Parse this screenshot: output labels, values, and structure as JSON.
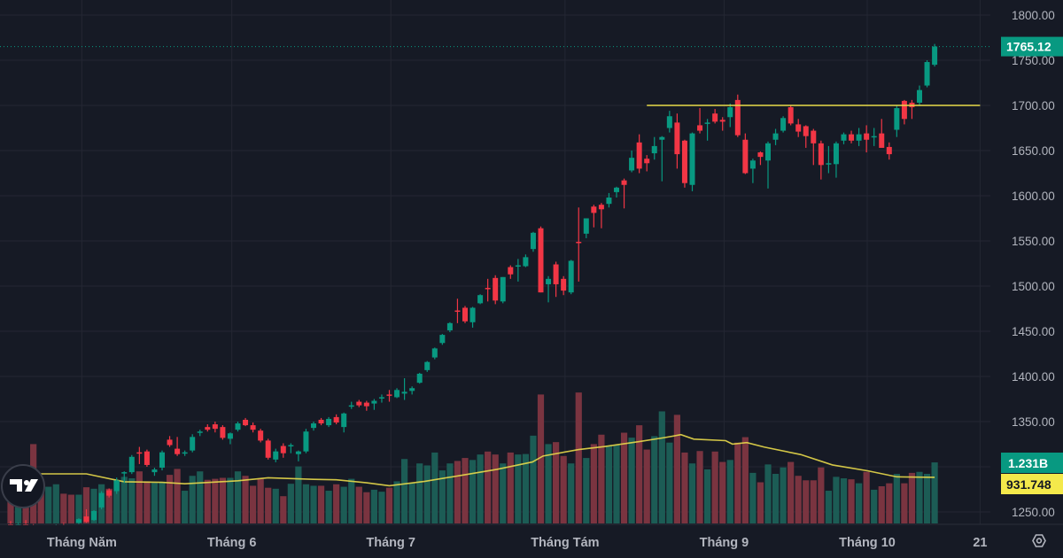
{
  "chart_data": {
    "type": "candlestick",
    "title": "",
    "ylim": [
      1240,
      1810
    ],
    "grid": true,
    "colors": {
      "up": "#089981",
      "down": "#f23645",
      "up_volume": "#1c5c55",
      "down_volume": "#7a3440",
      "volume_ma": "#e8d94a",
      "level_line": "#e8d94a",
      "background": "#161a25",
      "grid": "#242733",
      "axis_text": "#b2b5be"
    },
    "price_ticks": [
      "1800.00",
      "1750.00",
      "1700.00",
      "1650.00",
      "1600.00",
      "1550.00",
      "1500.00",
      "1450.00",
      "1400.00",
      "1350.00",
      "1250.00"
    ],
    "price_tick_values": [
      1800,
      1750,
      1700,
      1650,
      1600,
      1550,
      1500,
      1450,
      1400,
      1350,
      1250
    ],
    "time_ticks": [
      {
        "label": "Tháng Năm",
        "index": 9.4
      },
      {
        "label": "Tháng 6",
        "index": 29.2
      },
      {
        "label": "Tháng 7",
        "index": 50.2
      },
      {
        "label": "Tháng Tám",
        "index": 73.2
      },
      {
        "label": "Tháng 9",
        "index": 94.2
      },
      {
        "label": "Tháng 10",
        "index": 113.1
      },
      {
        "label": "21",
        "index": 128
      }
    ],
    "last_price": {
      "value": 1765.12,
      "label": "1765.12"
    },
    "volume_last": {
      "label": "1.231B",
      "value": 1.231
    },
    "volume_ma_last": {
      "label": "931.748",
      "value": 0.931748
    },
    "level_line": {
      "price": 1700,
      "from_index": 84,
      "to_index": 128
    },
    "volume_unit": "B",
    "ohlc": [
      [
        1236,
        1240,
        1228,
        1232
      ],
      [
        1232,
        1238,
        1226,
        1236
      ],
      [
        1236,
        1241,
        1230,
        1233
      ],
      [
        1233,
        1237,
        1225,
        1228
      ],
      [
        1228,
        1234,
        1222,
        1226
      ],
      [
        1226,
        1233,
        1222,
        1231
      ],
      [
        1231,
        1236,
        1226,
        1234
      ],
      [
        1234,
        1238,
        1228,
        1230
      ],
      [
        1230,
        1235,
        1226,
        1228
      ],
      [
        1238,
        1243,
        1236,
        1242
      ],
      [
        1245,
        1253,
        1238,
        1239
      ],
      [
        1241,
        1252,
        1240,
        1251
      ],
      [
        1255,
        1273,
        1253,
        1271
      ],
      [
        1274,
        1276,
        1266,
        1268
      ],
      [
        1273,
        1288,
        1270,
        1285
      ],
      [
        1293,
        1295,
        1282,
        1294
      ],
      [
        1294,
        1313,
        1292,
        1311
      ],
      [
        1316,
        1322,
        1303,
        1315
      ],
      [
        1317,
        1319,
        1300,
        1302
      ],
      [
        1294,
        1299,
        1290,
        1297
      ],
      [
        1299,
        1318,
        1296,
        1316
      ],
      [
        1330,
        1334,
        1322,
        1324
      ],
      [
        1320,
        1333,
        1312,
        1314
      ],
      [
        1315,
        1318,
        1312,
        1316
      ],
      [
        1318,
        1336,
        1316,
        1333
      ],
      [
        1338,
        1341,
        1334,
        1339
      ],
      [
        1344,
        1347,
        1339,
        1341
      ],
      [
        1347,
        1350,
        1338,
        1342
      ],
      [
        1344,
        1346,
        1330,
        1332
      ],
      [
        1331,
        1338,
        1325,
        1337
      ],
      [
        1341,
        1350,
        1339,
        1348
      ],
      [
        1352,
        1354,
        1345,
        1346
      ],
      [
        1346,
        1349,
        1338,
        1341
      ],
      [
        1340,
        1342,
        1327,
        1329
      ],
      [
        1329,
        1331,
        1308,
        1310
      ],
      [
        1308,
        1320,
        1305,
        1317
      ],
      [
        1323,
        1326,
        1310,
        1315
      ],
      [
        1323,
        1326,
        1315,
        1324
      ],
      [
        1314,
        1318,
        1306,
        1317
      ],
      [
        1317,
        1342,
        1315,
        1339
      ],
      [
        1343,
        1350,
        1340,
        1348
      ],
      [
        1352,
        1354,
        1346,
        1348
      ],
      [
        1346,
        1355,
        1344,
        1353
      ],
      [
        1355,
        1358,
        1347,
        1349
      ],
      [
        1344,
        1360,
        1338,
        1359
      ],
      [
        1367,
        1372,
        1364,
        1368
      ],
      [
        1372,
        1374,
        1366,
        1368
      ],
      [
        1371,
        1373,
        1362,
        1367
      ],
      [
        1370,
        1375,
        1363,
        1373
      ],
      [
        1376,
        1380,
        1371,
        1377
      ],
      [
        1380,
        1385,
        1372,
        1379
      ],
      [
        1377,
        1387,
        1376,
        1385
      ],
      [
        1381,
        1398,
        1374,
        1383
      ],
      [
        1384,
        1389,
        1380,
        1387
      ],
      [
        1393,
        1404,
        1392,
        1403
      ],
      [
        1407,
        1417,
        1405,
        1416
      ],
      [
        1421,
        1432,
        1419,
        1431
      ],
      [
        1437,
        1447,
        1435,
        1446
      ],
      [
        1451,
        1460,
        1449,
        1459
      ],
      [
        1473,
        1486,
        1459,
        1472
      ],
      [
        1476,
        1478,
        1459,
        1461
      ],
      [
        1460,
        1477,
        1454,
        1476
      ],
      [
        1481,
        1491,
        1480,
        1490
      ],
      [
        1498,
        1508,
        1483,
        1497
      ],
      [
        1509,
        1512,
        1480,
        1484
      ],
      [
        1483,
        1510,
        1481,
        1510
      ],
      [
        1521,
        1523,
        1508,
        1513
      ],
      [
        1522,
        1530,
        1505,
        1523
      ],
      [
        1522,
        1535,
        1521,
        1532
      ],
      [
        1541,
        1560,
        1538,
        1559
      ],
      [
        1564,
        1566,
        1493,
        1493
      ],
      [
        1502,
        1511,
        1482,
        1508
      ],
      [
        1524,
        1527,
        1488,
        1502
      ],
      [
        1508,
        1511,
        1490,
        1495
      ],
      [
        1493,
        1529,
        1491,
        1528
      ],
      [
        1549,
        1587,
        1505,
        1548
      ],
      [
        1558,
        1575,
        1553,
        1575
      ],
      [
        1588,
        1590,
        1565,
        1581
      ],
      [
        1590,
        1592,
        1564,
        1585
      ],
      [
        1591,
        1603,
        1587,
        1598
      ],
      [
        1604,
        1610,
        1598,
        1609
      ],
      [
        1617,
        1619,
        1586,
        1612
      ],
      [
        1628,
        1650,
        1626,
        1642
      ],
      [
        1659,
        1668,
        1625,
        1630
      ],
      [
        1641,
        1645,
        1627,
        1636
      ],
      [
        1647,
        1665,
        1640,
        1655
      ],
      [
        1662,
        1666,
        1616,
        1665
      ],
      [
        1675,
        1694,
        1670,
        1688
      ],
      [
        1681,
        1691,
        1630,
        1646
      ],
      [
        1661,
        1662,
        1609,
        1614
      ],
      [
        1612,
        1670,
        1605,
        1669
      ],
      [
        1678,
        1697,
        1669,
        1672
      ],
      [
        1680,
        1685,
        1661,
        1681
      ],
      [
        1691,
        1696,
        1680,
        1682
      ],
      [
        1684,
        1687,
        1672,
        1682
      ],
      [
        1687,
        1702,
        1676,
        1698
      ],
      [
        1706,
        1712,
        1665,
        1667
      ],
      [
        1662,
        1669,
        1624,
        1625
      ],
      [
        1630,
        1641,
        1614,
        1639
      ],
      [
        1648,
        1649,
        1634,
        1643
      ],
      [
        1639,
        1660,
        1608,
        1658
      ],
      [
        1662,
        1674,
        1656,
        1669
      ],
      [
        1672,
        1688,
        1670,
        1686
      ],
      [
        1698,
        1700,
        1678,
        1680
      ],
      [
        1679,
        1685,
        1665,
        1671
      ],
      [
        1677,
        1678,
        1653,
        1666
      ],
      [
        1672,
        1674,
        1634,
        1658
      ],
      [
        1658,
        1661,
        1618,
        1634
      ],
      [
        1635,
        1655,
        1625,
        1636
      ],
      [
        1635,
        1660,
        1620,
        1658
      ],
      [
        1661,
        1670,
        1657,
        1668
      ],
      [
        1668,
        1672,
        1658,
        1661
      ],
      [
        1661,
        1675,
        1655,
        1668
      ],
      [
        1669,
        1678,
        1648,
        1662
      ],
      [
        1665,
        1675,
        1655,
        1666
      ],
      [
        1669,
        1685,
        1655,
        1653
      ],
      [
        1654,
        1659,
        1640,
        1646
      ],
      [
        1673,
        1700,
        1665,
        1697
      ],
      [
        1705,
        1706,
        1679,
        1685
      ],
      [
        1703,
        1706,
        1685,
        1698
      ],
      [
        1703,
        1722,
        1700,
        1717
      ],
      [
        1722,
        1750,
        1720,
        1748
      ],
      [
        1745,
        1768,
        1743,
        1765.12
      ]
    ],
    "volume": [
      0.95,
      0.8,
      0.75,
      1.6,
      0.79,
      0.74,
      0.79,
      0.6,
      0.58,
      0.58,
      0.73,
      0.7,
      0.79,
      0.7,
      0.88,
      0.94,
      0.91,
      1.05,
      0.85,
      0.82,
      0.84,
      0.98,
      1.1,
      0.66,
      0.96,
      1.05,
      0.88,
      0.9,
      0.92,
      0.92,
      1.05,
      0.96,
      0.76,
      0.9,
      0.72,
      0.7,
      0.55,
      0.8,
      1.15,
      0.79,
      0.76,
      0.76,
      0.66,
      0.79,
      0.74,
      0.9,
      0.74,
      0.63,
      0.68,
      0.64,
      0.72,
      0.85,
      1.3,
      0.82,
      1.21,
      1.17,
      1.43,
      1.07,
      1.21,
      1.26,
      1.32,
      1.28,
      1.39,
      1.45,
      1.39,
      1.21,
      1.43,
      1.39,
      1.4,
      1.77,
      2.6,
      1.6,
      1.64,
      1.36,
      1.21,
      2.64,
      1.32,
      1.6,
      1.79,
      1.57,
      1.58,
      1.83,
      1.73,
      1.98,
      1.49,
      1.76,
      2.26,
      1.63,
      2.19,
      1.43,
      1.21,
      1.46,
      1.09,
      1.45,
      1.24,
      1.28,
      1.63,
      1.74,
      1.02,
      0.83,
      1.19,
      1.0,
      1.13,
      1.24,
      0.96,
      0.87,
      0.87,
      1.13,
      0.66,
      0.94,
      0.91,
      0.89,
      0.81,
      1.04,
      0.68,
      0.75,
      0.81,
      1.0,
      0.81,
      1.02,
      1.04,
      1.0,
      1.231
    ],
    "volume_ma": [
      [
        0,
        1.0
      ],
      [
        10,
        1.0
      ],
      [
        15,
        0.84
      ],
      [
        20,
        0.83
      ],
      [
        23,
        0.8
      ],
      [
        30,
        0.86
      ],
      [
        34,
        0.92
      ],
      [
        40,
        0.89
      ],
      [
        43,
        0.88
      ],
      [
        47,
        0.82
      ],
      [
        50,
        0.76
      ],
      [
        54.7,
        0.85
      ],
      [
        59.5,
        0.97
      ],
      [
        64.2,
        1.09
      ],
      [
        68.9,
        1.24
      ],
      [
        70.3,
        1.36
      ],
      [
        75,
        1.49
      ],
      [
        78.4,
        1.55
      ],
      [
        83,
        1.65
      ],
      [
        86.3,
        1.73
      ],
      [
        88.5,
        1.79
      ],
      [
        90.2,
        1.7
      ],
      [
        94.4,
        1.67
      ],
      [
        95.3,
        1.6
      ],
      [
        97.2,
        1.63
      ],
      [
        99.5,
        1.54
      ],
      [
        104.3,
        1.39
      ],
      [
        108.5,
        1.18
      ],
      [
        113.2,
        1.06
      ],
      [
        117,
        0.94
      ],
      [
        122,
        0.93
      ]
    ]
  }
}
